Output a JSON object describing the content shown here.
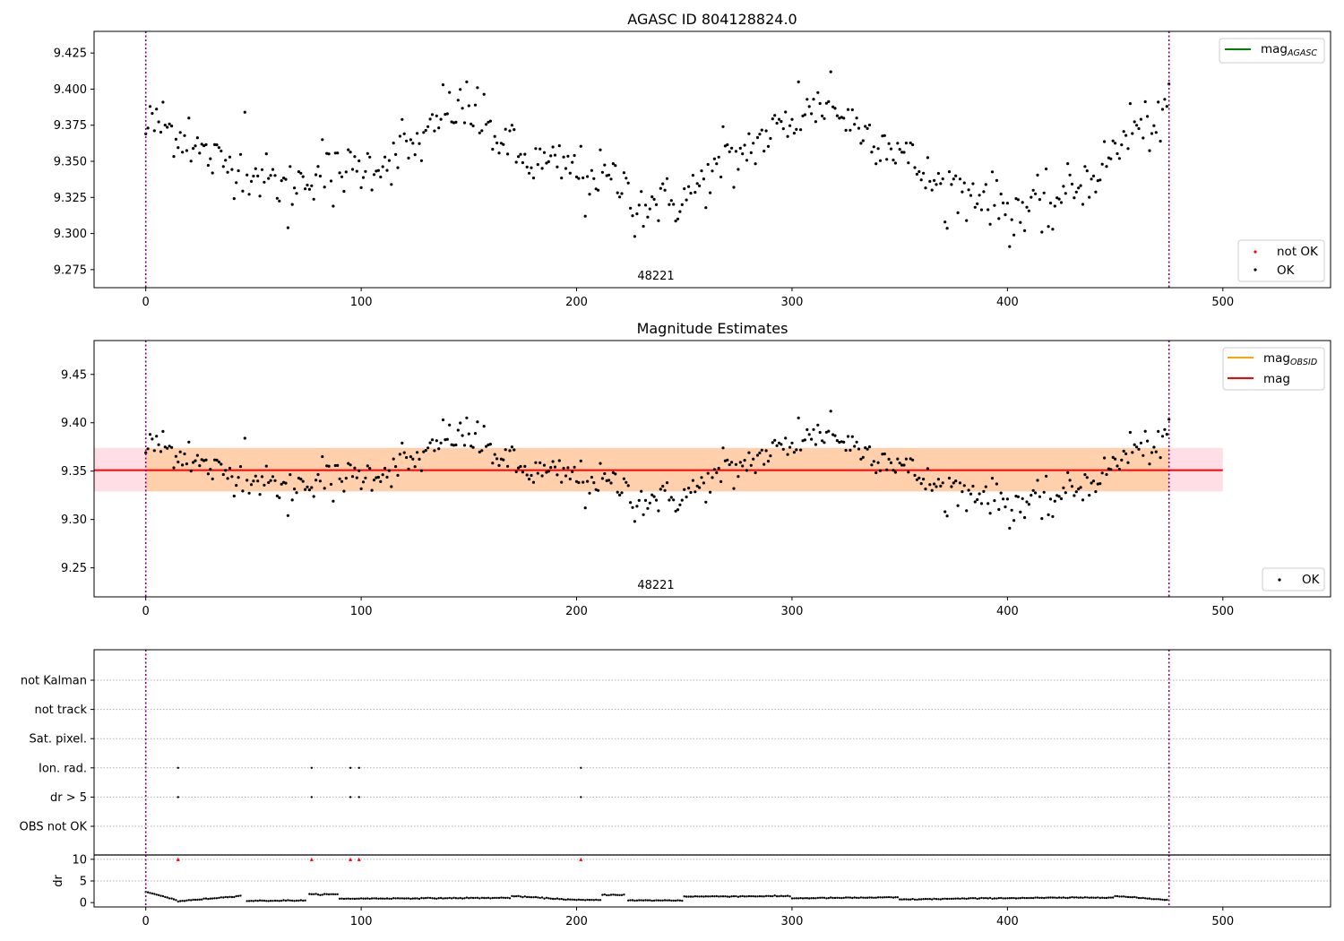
{
  "chart_data": [
    {
      "panel": "top",
      "type": "scatter",
      "title": "AGASC ID 804128824.0",
      "xlim": [
        -24,
        550
      ],
      "ylim": [
        9.2625,
        9.44
      ],
      "xticks": [
        0,
        100,
        200,
        300,
        400,
        500
      ],
      "yticks": [
        9.275,
        9.3,
        9.325,
        9.35,
        9.375,
        9.4,
        9.425
      ],
      "annotation": "48221",
      "vlines": [
        0,
        475
      ],
      "legend_upper": [
        {
          "label": "mag",
          "sub": "AGASC",
          "color": "#008000",
          "kind": "line"
        }
      ],
      "legend_lower": [
        {
          "label": "not OK",
          "color": "#ff0000",
          "kind": "dot"
        },
        {
          "label": "OK",
          "color": "#000000",
          "kind": "dot"
        }
      ],
      "series": [
        {
          "status": "OK",
          "color": "#000000",
          "n": 476,
          "trend": [
            [
              0,
              9.376
            ],
            [
              12,
              9.372
            ],
            [
              30,
              9.352
            ],
            [
              50,
              9.342
            ],
            [
              65,
              9.332
            ],
            [
              80,
              9.342
            ],
            [
              100,
              9.345
            ],
            [
              115,
              9.352
            ],
            [
              130,
              9.365
            ],
            [
              143,
              9.387
            ],
            [
              155,
              9.378
            ],
            [
              175,
              9.35
            ],
            [
              200,
              9.345
            ],
            [
              220,
              9.335
            ],
            [
              232,
              9.322
            ],
            [
              248,
              9.322
            ],
            [
              262,
              9.34
            ],
            [
              280,
              9.36
            ],
            [
              300,
              9.378
            ],
            [
              315,
              9.39
            ],
            [
              335,
              9.37
            ],
            [
              350,
              9.358
            ],
            [
              365,
              9.335
            ],
            [
              385,
              9.33
            ],
            [
              400,
              9.318
            ],
            [
              420,
              9.322
            ],
            [
              440,
              9.34
            ],
            [
              458,
              9.37
            ],
            [
              475,
              9.38
            ]
          ],
          "outliers": [
            [
              0,
              9.369
            ],
            [
              2,
              9.388
            ],
            [
              8,
              9.391
            ],
            [
              20,
              9.38
            ],
            [
              46,
              9.384
            ],
            [
              66,
              9.304
            ],
            [
              82,
              9.365
            ],
            [
              87,
              9.319
            ],
            [
              119,
              9.379
            ],
            [
              138,
              9.403
            ],
            [
              149,
              9.405
            ],
            [
              154,
              9.401
            ],
            [
              171,
              9.372
            ],
            [
              204,
              9.312
            ],
            [
              227,
              9.298
            ],
            [
              231,
              9.305
            ],
            [
              268,
              9.374
            ],
            [
              273,
              9.332
            ],
            [
              303,
              9.405
            ],
            [
              310,
              9.393
            ],
            [
              318,
              9.412
            ],
            [
              371,
              9.308
            ],
            [
              381,
              9.309
            ],
            [
              401,
              9.291
            ],
            [
              408,
              9.302
            ],
            [
              416,
              9.301
            ],
            [
              421,
              9.303
            ],
            [
              457,
              9.39
            ],
            [
              472,
              9.386
            ]
          ]
        }
      ],
      "ok_flags": {
        "not_ok_indices": [
          15,
          77,
          95,
          99,
          202
        ]
      }
    },
    {
      "panel": "middle",
      "type": "scatter",
      "title": "Magnitude Estimates",
      "xlim": [
        -24,
        550
      ],
      "ylim": [
        9.22,
        9.485
      ],
      "xticks": [
        0,
        100,
        200,
        300,
        400,
        500
      ],
      "yticks": [
        9.25,
        9.3,
        9.35,
        9.4,
        9.45
      ],
      "annotation": "48221",
      "vlines": [
        0,
        475
      ],
      "mag": 9.351,
      "mag_band": [
        9.329,
        9.374
      ],
      "mag_band_x": [
        -24,
        500
      ],
      "mag_obsid_band": [
        9.329,
        9.374
      ],
      "mag_obsid_band_x": [
        0,
        475
      ],
      "legend_upper": [
        {
          "label": "mag",
          "sub": "OBSID",
          "color": "#ffa500",
          "kind": "line"
        },
        {
          "label": "mag",
          "sub": "",
          "color": "#ff0000",
          "kind": "line"
        }
      ],
      "legend_lower": [
        {
          "label": "OK",
          "color": "#000000",
          "kind": "dot"
        }
      ]
    },
    {
      "panel": "bottom-flags",
      "type": "scatter",
      "xlim": [
        -24,
        550
      ],
      "categories": [
        "OBS not OK",
        "dr > 5",
        "Ion. rad.",
        "Sat. pixel.",
        "not track",
        "not Kalman"
      ],
      "flagged": {
        "dr > 5": [
          15,
          77,
          95,
          99,
          202
        ],
        "Ion. rad.": [
          15,
          77,
          95,
          99,
          202
        ]
      },
      "vlines": [
        0,
        475
      ]
    },
    {
      "panel": "bottom-dr",
      "type": "scatter",
      "xlim": [
        -24,
        550
      ],
      "ylim": [
        -1,
        11
      ],
      "ylabel": "dr",
      "xticks": [
        0,
        100,
        200,
        300,
        400,
        500
      ],
      "yticks": [
        0,
        5,
        10
      ],
      "clipped_at": 10,
      "clipped_indices": [
        15,
        77,
        95,
        99,
        202
      ],
      "vlines": [
        0,
        475
      ],
      "segments": [
        [
          0,
          15,
          2.5,
          0.5
        ],
        [
          15,
          45,
          0.3,
          1.6
        ],
        [
          47,
          75,
          0.4,
          0.5
        ],
        [
          76,
          90,
          1.9,
          1.9
        ],
        [
          90,
          170,
          0.9,
          1.1
        ],
        [
          170,
          200,
          1.5,
          0.6
        ],
        [
          200,
          212,
          0.6,
          0.6
        ],
        [
          212,
          223,
          1.8,
          1.8
        ],
        [
          224,
          250,
          0.5,
          0.5
        ],
        [
          250,
          300,
          1.4,
          1.5
        ],
        [
          300,
          350,
          1.0,
          1.2
        ],
        [
          350,
          390,
          0.7,
          1.0
        ],
        [
          390,
          450,
          1.0,
          1.2
        ],
        [
          450,
          475,
          1.5,
          0.6
        ]
      ]
    }
  ]
}
